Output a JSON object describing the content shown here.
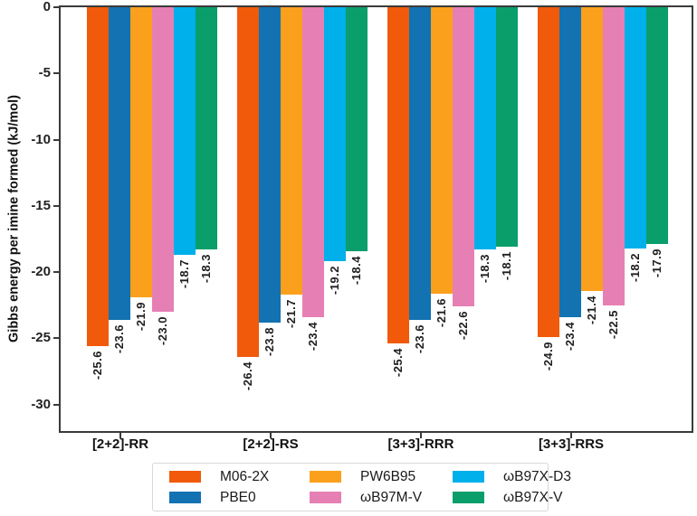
{
  "chart_data": {
    "type": "bar",
    "orientation": "vertical-grouped",
    "title": "",
    "xlabel": "",
    "ylabel": "Gibbs energy per imine formed (kJ/mol)",
    "ylim": [
      0,
      -32
    ],
    "grid": false,
    "spine_color": "#3a3a3a",
    "yticks": [
      {
        "value": 0,
        "label": "0"
      },
      {
        "value": -5,
        "label": "-5"
      },
      {
        "value": -10,
        "label": "-10"
      },
      {
        "value": -15,
        "label": "-15"
      },
      {
        "value": -20,
        "label": "-20"
      },
      {
        "value": -25,
        "label": "-25"
      },
      {
        "value": -30,
        "label": "-30"
      }
    ],
    "categories": [
      "[2+2]-RR",
      "[2+2]-RS",
      "[3+3]-RRR",
      "[3+3]-RRS"
    ],
    "series": [
      {
        "name": "M06-2X",
        "color": "#f05a0a",
        "values": [
          -25.6,
          -26.4,
          -25.4,
          -24.9
        ]
      },
      {
        "name": "PBE0",
        "color": "#1272b2",
        "values": [
          -23.6,
          -23.8,
          -23.6,
          -23.4
        ]
      },
      {
        "name": "PW6B95",
        "color": "#fba01c",
        "values": [
          -21.9,
          -21.7,
          -21.6,
          -21.4
        ]
      },
      {
        "name": "ωB97M-V",
        "color": "#e680b4",
        "values": [
          -23.0,
          -23.4,
          -22.6,
          -22.5
        ]
      },
      {
        "name": "ωB97X-D3",
        "color": "#00b0ea",
        "values": [
          -18.7,
          -19.2,
          -18.3,
          -18.2
        ]
      },
      {
        "name": "ωB97X-V",
        "color": "#0a9e6b",
        "values": [
          -18.3,
          -18.4,
          -18.1,
          -17.9
        ]
      }
    ],
    "value_labels_shown": true,
    "value_label_rotation_deg": 90,
    "legend": {
      "position": "bottom-center",
      "columns": 3,
      "column_major": true
    }
  }
}
